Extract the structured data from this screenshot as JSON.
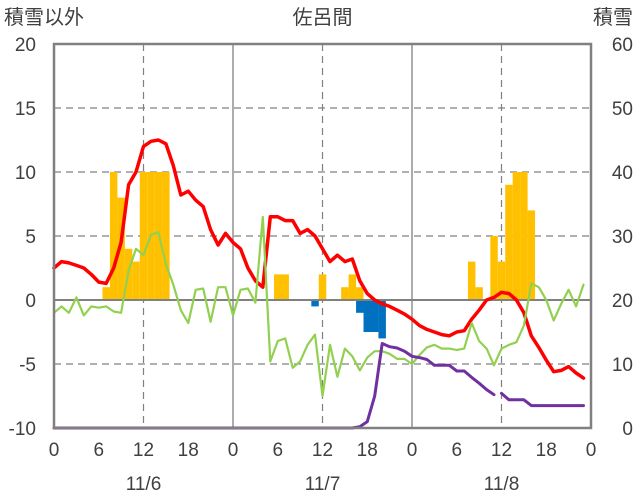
{
  "chart_data": {
    "type": "bar+line",
    "title": "佐呂間",
    "left_axis_label": "積雪以外",
    "right_axis_label": "積雪",
    "left_ylim": [
      -10,
      20
    ],
    "left_yticks": [
      "20",
      "15",
      "10",
      "5",
      "0",
      "-5",
      "-10"
    ],
    "right_ylim": [
      0,
      60
    ],
    "right_yticks": [
      "60",
      "50",
      "40",
      "30",
      "20",
      "10",
      "0"
    ],
    "xlim_hours": [
      0,
      72
    ],
    "x_ticks": [
      {
        "x": 0,
        "label": "0"
      },
      {
        "x": 6,
        "label": "6"
      },
      {
        "x": 12,
        "label": "12"
      },
      {
        "x": 18,
        "label": "18"
      },
      {
        "x": 24,
        "label": "0"
      },
      {
        "x": 30,
        "label": "6"
      },
      {
        "x": 36,
        "label": "12"
      },
      {
        "x": 42,
        "label": "18"
      },
      {
        "x": 48,
        "label": "0"
      },
      {
        "x": 54,
        "label": "6"
      },
      {
        "x": 60,
        "label": "12"
      },
      {
        "x": 66,
        "label": "18"
      },
      {
        "x": 72,
        "label": "0"
      }
    ],
    "date_labels": [
      {
        "x": 12,
        "label": "11/6"
      },
      {
        "x": 36,
        "label": "11/7"
      },
      {
        "x": 60,
        "label": "11/8"
      }
    ],
    "grid": {
      "vertical_dashed_hours": [
        12,
        36,
        60
      ],
      "vertical_solid_hours": [
        24,
        48
      ],
      "horizontal_dashed_values": [
        15,
        10,
        5,
        -5
      ],
      "zero_line": true
    },
    "colors": {
      "precip_bar": "#FFC000",
      "negative_bar": "#0070C0",
      "temperature": "#FF0000",
      "wind": "#92D050",
      "snow_depth": "#7030A0",
      "frame": "#808080",
      "grid": "#808080"
    },
    "series": [
      {
        "kind": "bar",
        "axis": "left",
        "color": "#FFC000",
        "bars": [
          [
            7,
            1
          ],
          [
            8,
            10
          ],
          [
            9,
            8
          ],
          [
            10,
            4
          ],
          [
            11,
            3
          ],
          [
            12,
            10
          ],
          [
            13,
            10
          ],
          [
            14,
            10
          ],
          [
            15,
            10
          ],
          [
            30,
            2
          ],
          [
            31,
            2
          ],
          [
            36,
            2
          ],
          [
            39,
            1
          ],
          [
            40,
            2
          ],
          [
            41,
            1
          ],
          [
            56,
            3
          ],
          [
            57,
            1
          ],
          [
            59,
            5
          ],
          [
            60,
            3
          ],
          [
            61,
            9
          ],
          [
            62,
            10
          ],
          [
            63,
            10
          ],
          [
            64,
            7
          ]
        ]
      },
      {
        "kind": "bar",
        "axis": "left",
        "color": "#0070C0",
        "bars": [
          [
            35,
            -0.5
          ],
          [
            41,
            -1
          ],
          [
            42,
            -2.5
          ],
          [
            43,
            -2.5
          ],
          [
            44,
            -3
          ]
        ]
      },
      {
        "kind": "line",
        "axis": "left",
        "color": "#FF0000",
        "points": [
          [
            0,
            2.5
          ],
          [
            1,
            3
          ],
          [
            2,
            2.9
          ],
          [
            3,
            2.7
          ],
          [
            4,
            2.5
          ],
          [
            5,
            2
          ],
          [
            6,
            1.4
          ],
          [
            7,
            1.3
          ],
          [
            8,
            2.5
          ],
          [
            9,
            4.5
          ],
          [
            10,
            9
          ],
          [
            11,
            10
          ],
          [
            12,
            12
          ],
          [
            13,
            12.4
          ],
          [
            14,
            12.5
          ],
          [
            15,
            12.2
          ],
          [
            16,
            10.5
          ],
          [
            17,
            8.2
          ],
          [
            18,
            8.5
          ],
          [
            19,
            7.8
          ],
          [
            20,
            7.3
          ],
          [
            21,
            5.5
          ],
          [
            22,
            4.3
          ],
          [
            23,
            5.2
          ],
          [
            24,
            4.5
          ],
          [
            25,
            4
          ],
          [
            26,
            2.5
          ],
          [
            27,
            1.5
          ],
          [
            28,
            1
          ],
          [
            29,
            6.5
          ],
          [
            30,
            6.5
          ],
          [
            31,
            6.2
          ],
          [
            32,
            6.2
          ],
          [
            33,
            5.2
          ],
          [
            34,
            5.5
          ],
          [
            35,
            5
          ],
          [
            36,
            4
          ],
          [
            37,
            3
          ],
          [
            38,
            3.5
          ],
          [
            39,
            3
          ],
          [
            40,
            3.2
          ],
          [
            41,
            1.5
          ],
          [
            42,
            0.5
          ],
          [
            43,
            0
          ],
          [
            44,
            -0.3
          ],
          [
            45,
            -0.5
          ],
          [
            46,
            -0.8
          ],
          [
            47,
            -1.1
          ],
          [
            48,
            -1.5
          ],
          [
            49,
            -2
          ],
          [
            50,
            -2.3
          ],
          [
            51,
            -2.5
          ],
          [
            52,
            -2.7
          ],
          [
            53,
            -2.8
          ],
          [
            54,
            -2.5
          ],
          [
            55,
            -2.4
          ],
          [
            56,
            -1.5
          ],
          [
            57,
            -0.8
          ],
          [
            58,
            0
          ],
          [
            59,
            0.2
          ],
          [
            60,
            0.6
          ],
          [
            61,
            0.5
          ],
          [
            62,
            0
          ],
          [
            63,
            -1
          ],
          [
            64,
            -2.8
          ],
          [
            65,
            -3.7
          ],
          [
            66,
            -4.7
          ],
          [
            67,
            -5.6
          ],
          [
            68,
            -5.5
          ],
          [
            69,
            -5.2
          ],
          [
            70,
            -5.7
          ],
          [
            71,
            -6.1
          ]
        ]
      },
      {
        "kind": "line",
        "axis": "left",
        "color": "#92D050",
        "points": [
          [
            0,
            -1
          ],
          [
            1,
            -0.5
          ],
          [
            2,
            -1
          ],
          [
            3,
            0.2
          ],
          [
            4,
            -1.2
          ],
          [
            5,
            -0.5
          ],
          [
            6,
            -0.6
          ],
          [
            7,
            -0.5
          ],
          [
            8,
            -0.9
          ],
          [
            9,
            -1
          ],
          [
            10,
            2.3
          ],
          [
            11,
            4
          ],
          [
            12,
            3.5
          ],
          [
            13,
            5.1
          ],
          [
            14,
            5.3
          ],
          [
            15,
            2.8
          ],
          [
            16,
            1.2
          ],
          [
            17,
            -0.8
          ],
          [
            18,
            -1.8
          ],
          [
            19,
            0.8
          ],
          [
            20,
            0.9
          ],
          [
            21,
            -1.7
          ],
          [
            22,
            1
          ],
          [
            23,
            1
          ],
          [
            24,
            -1.2
          ],
          [
            25,
            0.8
          ],
          [
            26,
            0.9
          ],
          [
            27,
            -0.2
          ],
          [
            28,
            6.5
          ],
          [
            29,
            -4.8
          ],
          [
            30,
            -3.2
          ],
          [
            31,
            -3
          ],
          [
            32,
            -5.3
          ],
          [
            33,
            -4.8
          ],
          [
            34,
            -3.5
          ],
          [
            35,
            -2.7
          ],
          [
            36,
            -7.5
          ],
          [
            37,
            -3.5
          ],
          [
            38,
            -6
          ],
          [
            39,
            -3.8
          ],
          [
            40,
            -4.4
          ],
          [
            41,
            -5.5
          ],
          [
            42,
            -4.5
          ],
          [
            43,
            -4
          ],
          [
            44,
            -4
          ],
          [
            45,
            -4.2
          ],
          [
            46,
            -4.6
          ],
          [
            47,
            -4.6
          ],
          [
            48,
            -5
          ],
          [
            49,
            -4.3
          ],
          [
            50,
            -3.7
          ],
          [
            51,
            -3.5
          ],
          [
            52,
            -3.8
          ],
          [
            53,
            -3.8
          ],
          [
            54,
            -3.9
          ],
          [
            55,
            -3.8
          ],
          [
            56,
            -1.8
          ],
          [
            57,
            -3.2
          ],
          [
            58,
            -3.8
          ],
          [
            59,
            -5.1
          ],
          [
            60,
            -3.8
          ],
          [
            61,
            -3.5
          ],
          [
            62,
            -3.3
          ],
          [
            63,
            -2
          ],
          [
            64,
            1.3
          ],
          [
            65,
            1
          ],
          [
            66,
            0
          ],
          [
            67,
            -1.6
          ],
          [
            68,
            -0.3
          ],
          [
            69,
            0.8
          ],
          [
            70,
            -0.5
          ],
          [
            71,
            1.2
          ]
        ]
      },
      {
        "kind": "line",
        "axis": "right",
        "color": "#7030A0",
        "segments": [
          [
            [
              0,
              0
            ],
            [
              10,
              0
            ],
            [
              20,
              0
            ],
            [
              30,
              0
            ],
            [
              40,
              0
            ],
            [
              41,
              0.2
            ],
            [
              42,
              1
            ],
            [
              43,
              5
            ],
            [
              44,
              13.2
            ],
            [
              45,
              12.7
            ],
            [
              46,
              12.5
            ],
            [
              47,
              12
            ],
            [
              48,
              11.2
            ],
            [
              49,
              11
            ],
            [
              50,
              10.7
            ],
            [
              51,
              9.8
            ],
            [
              52,
              9.8
            ],
            [
              53,
              9.8
            ],
            [
              54,
              8.9
            ],
            [
              55,
              8.9
            ],
            [
              56,
              7.9
            ],
            [
              57,
              7
            ],
            [
              58,
              6
            ],
            [
              59,
              5.2
            ]
          ],
          [
            [
              60,
              5.4
            ],
            [
              61,
              4.4
            ],
            [
              62,
              4.4
            ],
            [
              63,
              4.4
            ],
            [
              64,
              3.5
            ],
            [
              65,
              3.5
            ],
            [
              66,
              3.5
            ],
            [
              67,
              3.5
            ],
            [
              68,
              3.5
            ],
            [
              69,
              3.5
            ],
            [
              70,
              3.5
            ],
            [
              71,
              3.5
            ]
          ]
        ]
      }
    ]
  }
}
